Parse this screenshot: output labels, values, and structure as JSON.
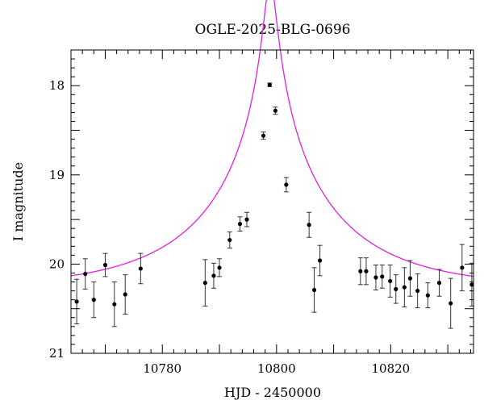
{
  "chart_data": {
    "type": "scatter",
    "title": "OGLE-2025-BLG-0696",
    "xlabel": "HJD - 2450000",
    "ylabel": "I magnitude",
    "xlim": [
      10764,
      10834.5
    ],
    "ylim": [
      21,
      17.6
    ],
    "y_inverted": true,
    "xticks": [
      10780,
      10800,
      10820
    ],
    "yticks": [
      18,
      19,
      20,
      21
    ],
    "grid": false,
    "series": [
      {
        "type": "points_with_errorbars",
        "color": "#000000",
        "points": [
          {
            "x": 10765.0,
            "y": 20.42,
            "err": 0.25
          },
          {
            "x": 10766.5,
            "y": 20.11,
            "err": 0.17
          },
          {
            "x": 10768.0,
            "y": 20.4,
            "err": 0.2
          },
          {
            "x": 10770.0,
            "y": 20.01,
            "err": 0.13
          },
          {
            "x": 10771.6,
            "y": 20.45,
            "err": 0.25
          },
          {
            "x": 10773.5,
            "y": 20.34,
            "err": 0.22
          },
          {
            "x": 10776.2,
            "y": 20.05,
            "err": 0.17
          },
          {
            "x": 10787.5,
            "y": 20.21,
            "err": 0.26
          },
          {
            "x": 10789.0,
            "y": 20.13,
            "err": 0.14
          },
          {
            "x": 10790.0,
            "y": 20.04,
            "err": 0.1
          },
          {
            "x": 10791.8,
            "y": 19.73,
            "err": 0.09
          },
          {
            "x": 10793.6,
            "y": 19.55,
            "err": 0.08
          },
          {
            "x": 10794.8,
            "y": 19.5,
            "err": 0.08
          },
          {
            "x": 10797.7,
            "y": 18.56,
            "err": 0.04
          },
          {
            "x": 10798.8,
            "y": 17.99,
            "err": 0.02
          },
          {
            "x": 10799.8,
            "y": 18.28,
            "err": 0.04
          },
          {
            "x": 10801.7,
            "y": 19.11,
            "err": 0.08
          },
          {
            "x": 10805.7,
            "y": 19.56,
            "err": 0.14
          },
          {
            "x": 10806.6,
            "y": 20.29,
            "err": 0.25
          },
          {
            "x": 10807.6,
            "y": 19.96,
            "err": 0.17
          },
          {
            "x": 10814.7,
            "y": 20.08,
            "err": 0.15
          },
          {
            "x": 10815.7,
            "y": 20.08,
            "err": 0.15
          },
          {
            "x": 10817.4,
            "y": 20.15,
            "err": 0.14
          },
          {
            "x": 10818.5,
            "y": 20.14,
            "err": 0.13
          },
          {
            "x": 10819.9,
            "y": 20.19,
            "err": 0.18
          },
          {
            "x": 10820.9,
            "y": 20.28,
            "err": 0.16
          },
          {
            "x": 10822.4,
            "y": 20.26,
            "err": 0.22
          },
          {
            "x": 10823.4,
            "y": 20.16,
            "err": 0.2
          },
          {
            "x": 10824.7,
            "y": 20.3,
            "err": 0.19
          },
          {
            "x": 10826.5,
            "y": 20.35,
            "err": 0.14
          },
          {
            "x": 10828.5,
            "y": 20.21,
            "err": 0.15
          },
          {
            "x": 10830.5,
            "y": 20.44,
            "err": 0.28
          },
          {
            "x": 10832.5,
            "y": 20.04,
            "err": 0.26
          },
          {
            "x": 10834.2,
            "y": 20.23,
            "err": 0.24
          }
        ]
      },
      {
        "type": "model_curve",
        "color": "#e020e0",
        "model": "point_lens",
        "t0": 10798.9,
        "tE": 23.5,
        "u0": 0.042,
        "baseline_mag": 20.27,
        "blend_fraction": 1.0
      }
    ]
  }
}
